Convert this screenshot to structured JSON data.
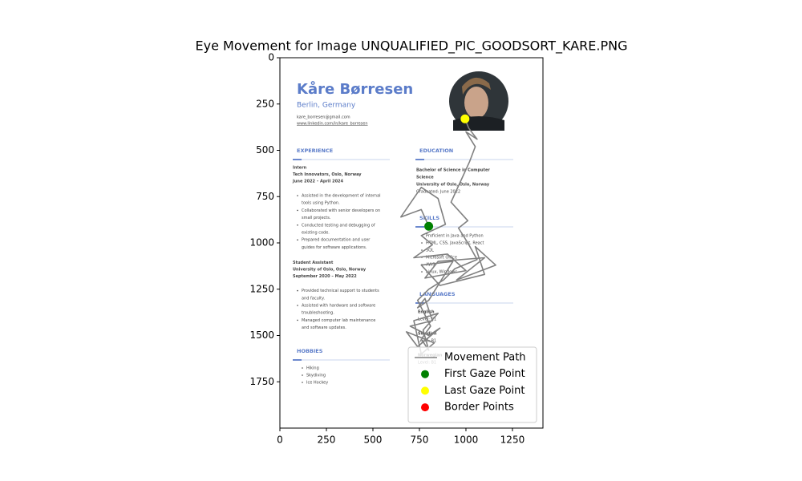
{
  "chart_data": {
    "type": "line",
    "title": "Eye Movement for Image UNQUALIFIED_PIC_GOODSORT_KARE.PNG",
    "xlim": [
      0,
      1414
    ],
    "ylim": [
      2000,
      0
    ],
    "xticks": [
      0,
      250,
      500,
      750,
      1000,
      1250
    ],
    "yticks": [
      0,
      250,
      500,
      750,
      1000,
      1250,
      1500,
      1750
    ],
    "legend": "lower right",
    "series": [
      {
        "name": "Movement Path",
        "color": "gray",
        "x": [
          800,
          760,
          650,
          760,
          850,
          890,
          760,
          820,
          720,
          900,
          1000,
          780,
          850,
          1100,
          950,
          1160,
          1050,
          1100,
          860,
          760,
          930,
          800,
          740,
          780,
          820,
          700,
          800,
          860,
          740,
          680,
          830,
          760,
          720,
          850,
          770,
          800,
          760,
          810,
          740,
          800,
          880,
          940,
          1060,
          1010,
          960,
          1010,
          920,
          1020,
          1050,
          1000,
          1060,
          1015,
          995
        ],
        "y": [
          910,
          820,
          860,
          700,
          760,
          900,
          960,
          1010,
          1080,
          1060,
          1150,
          1190,
          1100,
          1080,
          1200,
          1120,
          1020,
          1170,
          1230,
          1120,
          1100,
          1310,
          1350,
          1300,
          1420,
          1450,
          1500,
          1460,
          1560,
          1480,
          1540,
          1600,
          1420,
          1380,
          1470,
          1580,
          1520,
          1450,
          1310,
          1250,
          1200,
          1140,
          1090,
          1000,
          920,
          880,
          780,
          560,
          480,
          400,
          440,
          380,
          330
        ]
      },
      {
        "name": "First Gaze Point",
        "color": "green",
        "x": [
          800
        ],
        "y": [
          910
        ]
      },
      {
        "name": "Last Gaze Point",
        "color": "yellow",
        "x": [
          995
        ],
        "y": [
          330
        ]
      },
      {
        "name": "Border Points",
        "color": "red",
        "x": [],
        "y": []
      }
    ]
  },
  "image": {
    "name": "Kåre Børresen",
    "location": "Berlin, Germany",
    "email": "kare_borresen@gmail.com",
    "linkedin": "www.linkedin.com/in/kare_borresen",
    "experience": {
      "heading": "EXPERIENCE",
      "jobs": [
        {
          "title": "Intern",
          "org": "Tech Innovators, Oslo, Norway",
          "dates": "June 2022 – April 2024",
          "bullets": [
            [
              "Assisted in the development of internal",
              "tools using Python."
            ],
            [
              "Collaborated with senior developers on",
              "small projects."
            ],
            [
              "Conducted testing and debugging of",
              "existing code."
            ],
            [
              "Prepared documentation and user",
              "guides for software applications."
            ]
          ]
        },
        {
          "title": "Student Assistant",
          "org": "University of Oslo, Oslo, Norway",
          "dates": "September 2020 – May 2022",
          "bullets": [
            [
              "Provided technical support to students",
              "and faculty."
            ],
            [
              "Assisted with hardware and software",
              "troubleshooting."
            ],
            [
              "Managed computer lab maintenance",
              "and software updates."
            ]
          ]
        }
      ]
    },
    "hobbies": {
      "heading": "HOBBIES",
      "items": [
        "Hiking",
        "Skydiving",
        "Ice Hockey"
      ]
    },
    "education": {
      "heading": "EDUCATION",
      "lines": [
        "Bachelor of Science in Computer",
        "Science",
        "University of Oslo, Oslo, Norway",
        "Graduated: June 2022"
      ]
    },
    "skills": {
      "heading": "SKILLS",
      "items": [
        "Proficient in Java and Python",
        "HTML, CSS, JavaScript, React",
        "SQL",
        "Microsoft Office",
        "AWS",
        "Linux, Windows"
      ]
    },
    "languages": {
      "heading": "LANGUAGES",
      "items": [
        {
          "name": "English",
          "level": "Level: C1"
        },
        {
          "name": "Swedish",
          "level": "Level: B1"
        },
        {
          "name": "Norwegian",
          "level": "Level: B1"
        }
      ]
    }
  }
}
